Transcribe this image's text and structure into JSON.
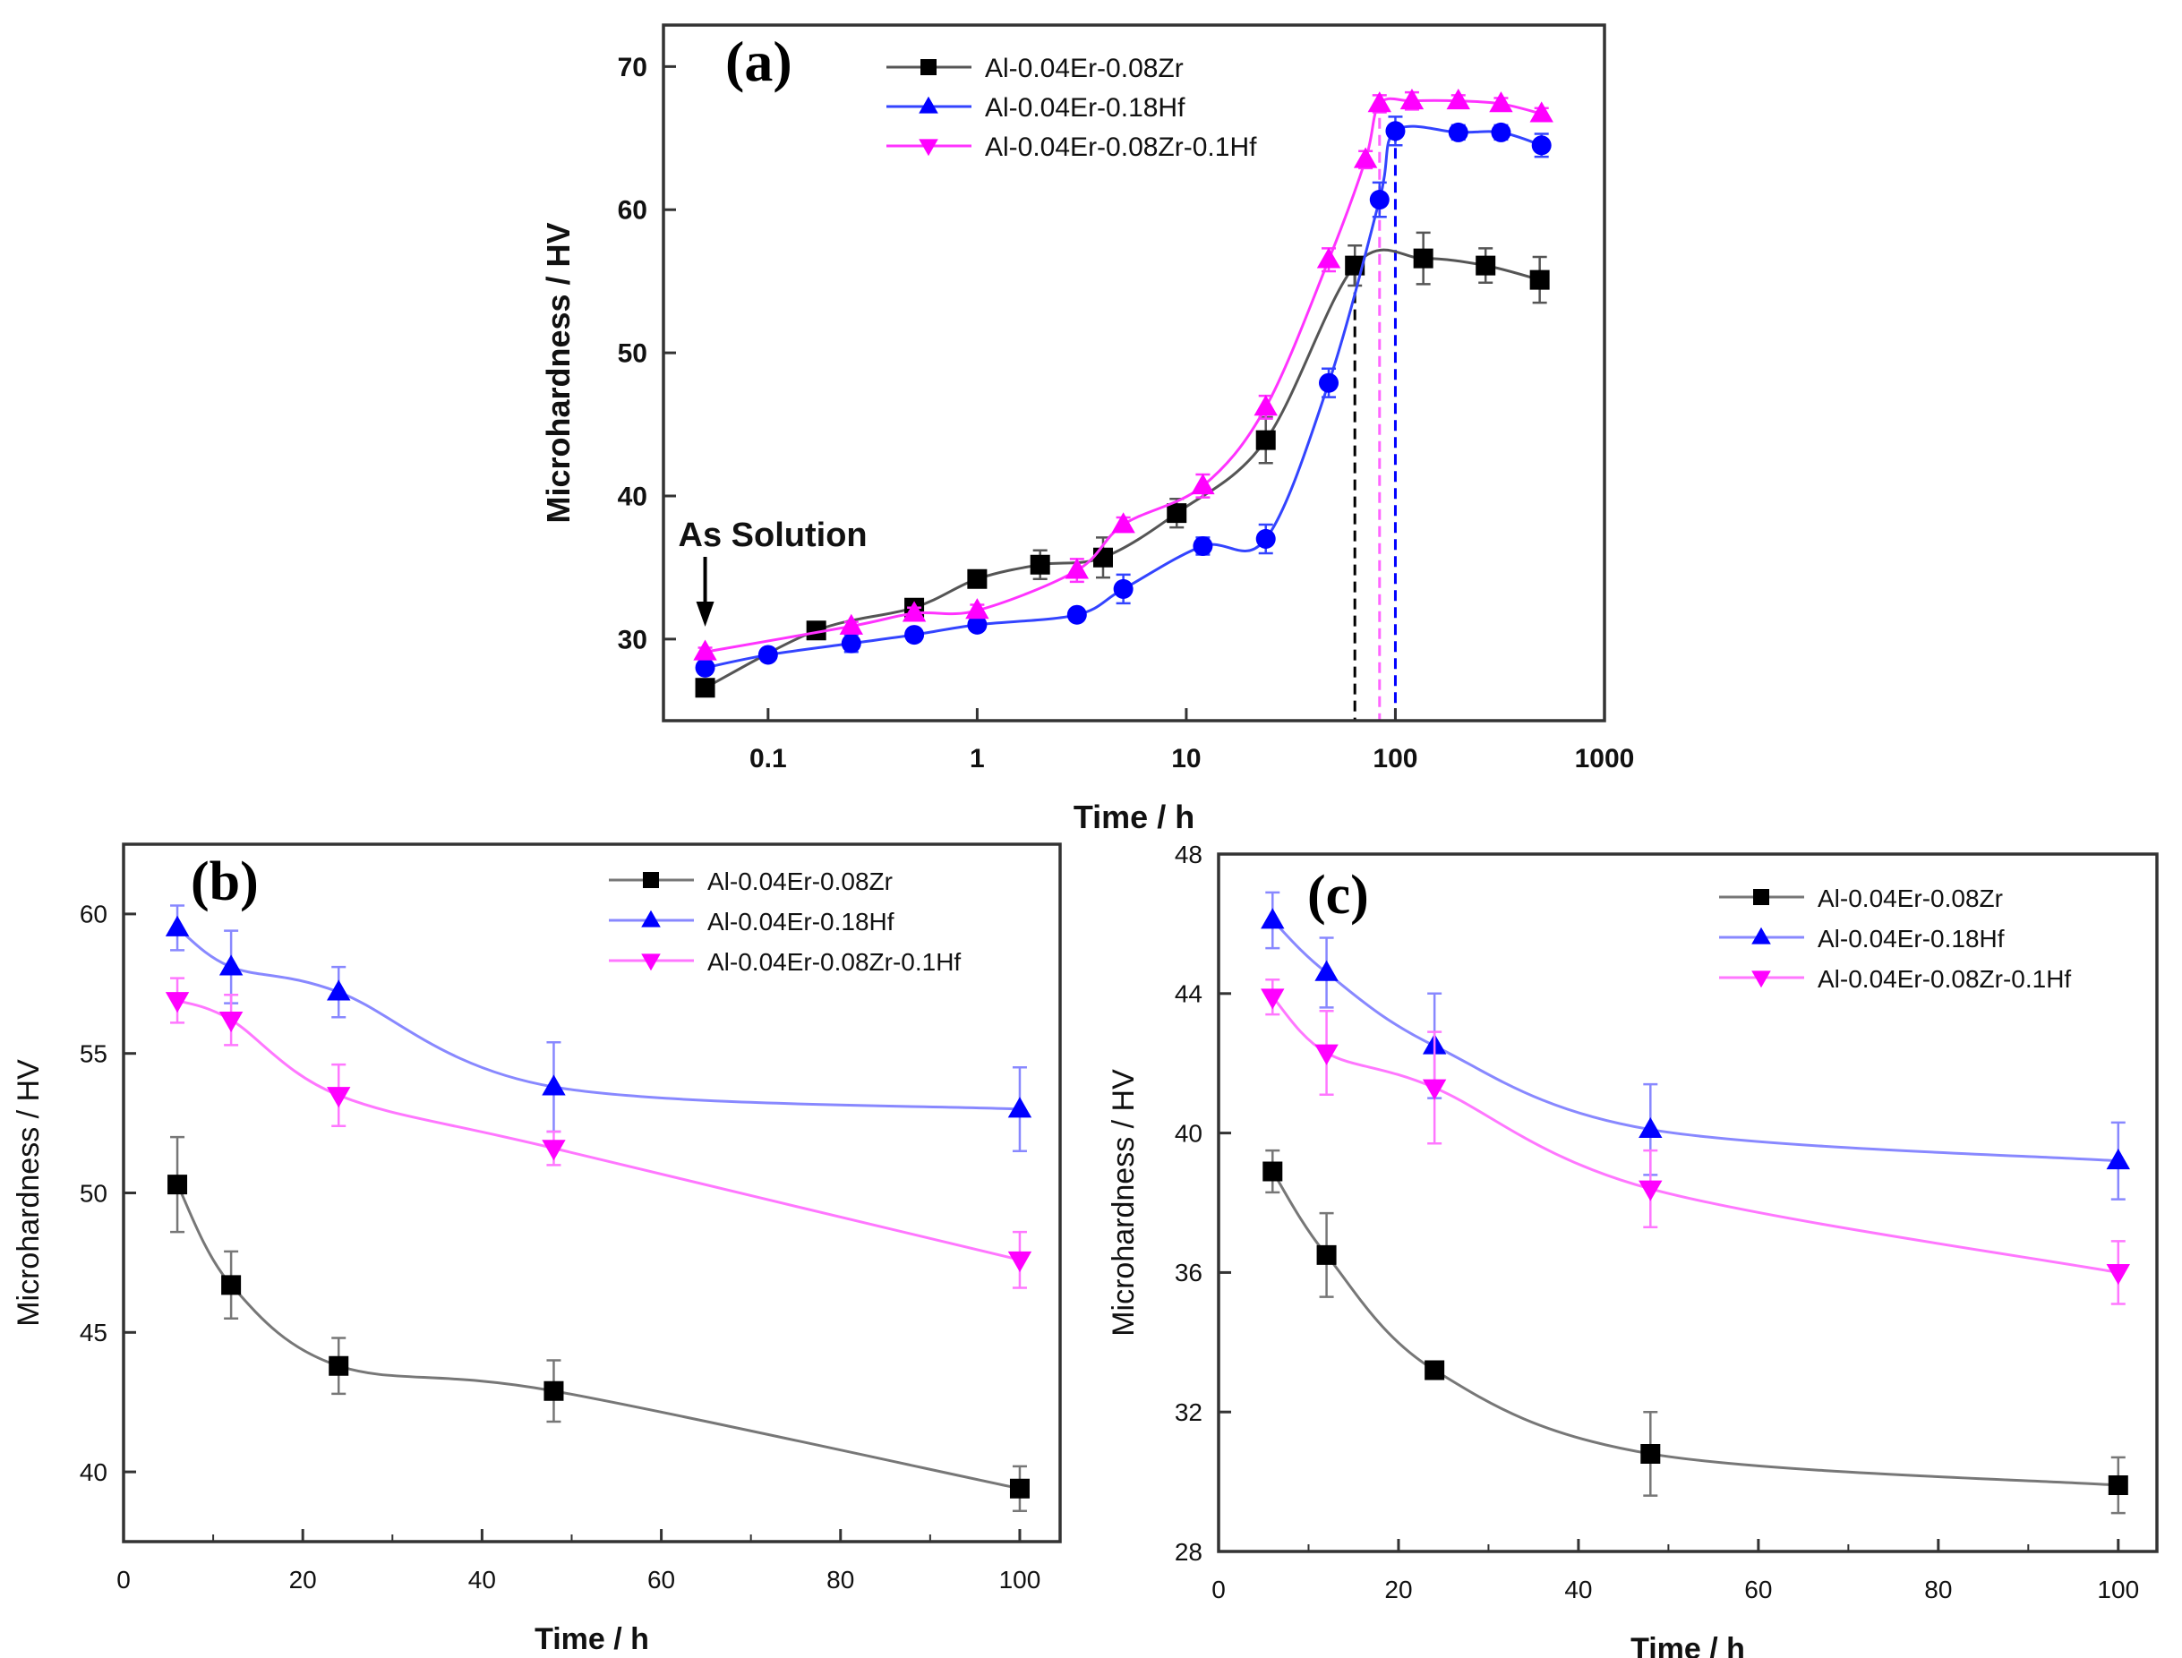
{
  "chart_data": [
    {
      "type": "line",
      "panel_label": "(a)",
      "xlabel": "Time / h",
      "ylabel": "Microhardness / HV",
      "xscale": "log",
      "xlim": [
        0.0316,
        1000
      ],
      "ylim": [
        24.3,
        72.9
      ],
      "xticks": [
        0.1,
        1,
        10,
        100,
        1000
      ],
      "xtick_labels": [
        "0.1",
        "1",
        "10",
        "100",
        "1000"
      ],
      "yticks": [
        30,
        40,
        50,
        60,
        70
      ],
      "ytick_labels": [
        "30",
        "40",
        "50",
        "60",
        "70"
      ],
      "legend_position": "top-center",
      "annotation": "As Solution",
      "annotation_x": 0.05,
      "peak_lines": [
        {
          "x": 64,
          "color": "#000000"
        },
        {
          "x": 84,
          "color": "#ff66ff"
        },
        {
          "x": 100,
          "color": "#0000ff"
        }
      ],
      "series": [
        {
          "name": "Al-0.04Er-0.08Zr",
          "color": "#000000",
          "line_color": "#555555",
          "marker": "square",
          "x": [
            0.05,
            0.17,
            0.5,
            1,
            2,
            4,
            9,
            24,
            64,
            136,
            270,
            490
          ],
          "y": [
            26.6,
            30.6,
            32.2,
            34.2,
            35.2,
            35.7,
            38.8,
            43.9,
            56.1,
            56.6,
            56.1,
            55.1
          ],
          "err": [
            0.3,
            0.4,
            0.4,
            0.4,
            1.0,
            1.4,
            1.0,
            1.6,
            1.4,
            1.8,
            1.2,
            1.6
          ]
        },
        {
          "name": "Al-0.04Er-0.18Hf",
          "color": "#0000ff",
          "line_color": "#3344ff",
          "marker": "triangle-up",
          "plot_marker": "circle",
          "x": [
            0.05,
            0.1,
            0.25,
            0.5,
            1,
            3,
            5,
            12,
            24,
            48,
            84,
            100,
            200,
            320,
            500
          ],
          "y": [
            28.0,
            28.9,
            29.7,
            30.3,
            31.0,
            31.7,
            33.5,
            36.5,
            37.0,
            47.9,
            60.7,
            65.5,
            65.4,
            65.4,
            64.5
          ],
          "err": [
            0.4,
            0.4,
            0.6,
            0.4,
            0.4,
            0.4,
            1.0,
            0.6,
            1.0,
            1.0,
            1.2,
            1.0,
            0.5,
            0.5,
            0.8
          ]
        },
        {
          "name": "Al-0.04Er-0.08Zr-0.1Hf",
          "color": "#ff00ff",
          "line_color": "#ff33ff",
          "marker": "triangle-down",
          "plot_marker": "triangle-up",
          "x": [
            0.05,
            0.25,
            0.5,
            1,
            3,
            5,
            12,
            24,
            48,
            72,
            84,
            120,
            200,
            320,
            500
          ],
          "y": [
            29.1,
            30.9,
            31.8,
            32.0,
            34.8,
            38.0,
            40.7,
            46.2,
            56.5,
            63.5,
            67.4,
            67.6,
            67.6,
            67.4,
            66.7
          ],
          "err": [
            0.3,
            0.3,
            0.4,
            0.4,
            0.8,
            0.5,
            0.8,
            0.8,
            0.8,
            0.6,
            0.6,
            0.6,
            0.4,
            0.4,
            0.4
          ]
        }
      ]
    },
    {
      "type": "line",
      "panel_label": "(b)",
      "xlabel": "Time / h",
      "ylabel": "Microhardness / HV",
      "xscale": "linear",
      "xlim": [
        0,
        104.5
      ],
      "ylim": [
        37.5,
        62.5
      ],
      "xticks": [
        0,
        20,
        40,
        60,
        80,
        100
      ],
      "xtick_labels": [
        "0",
        "20",
        "40",
        "60",
        "80",
        "100"
      ],
      "yticks": [
        40,
        45,
        50,
        55,
        60
      ],
      "ytick_labels": [
        "40",
        "45",
        "50",
        "55",
        "60"
      ],
      "legend_position": "top-right",
      "series": [
        {
          "name": "Al-0.04Er-0.08Zr",
          "color": "#000000",
          "line_color": "#777777",
          "marker": "square",
          "x": [
            6,
            12,
            24,
            48,
            100
          ],
          "y": [
            50.3,
            46.7,
            43.8,
            42.9,
            39.4
          ],
          "err": [
            1.7,
            1.2,
            1.0,
            1.1,
            0.8
          ]
        },
        {
          "name": "Al-0.04Er-0.18Hf",
          "color": "#0000ff",
          "line_color": "#8888ff",
          "marker": "triangle-up",
          "x": [
            6,
            12,
            24,
            48,
            100
          ],
          "y": [
            59.5,
            58.1,
            57.2,
            53.8,
            53.0
          ],
          "err": [
            0.8,
            1.3,
            0.9,
            1.6,
            1.5
          ]
        },
        {
          "name": "Al-0.04Er-0.08Zr-0.1Hf",
          "color": "#ff00ff",
          "line_color": "#ff77ff",
          "marker": "triangle-down",
          "x": [
            6,
            12,
            24,
            48,
            100
          ],
          "y": [
            56.9,
            56.2,
            53.5,
            51.6,
            47.6
          ],
          "err": [
            0.8,
            0.9,
            1.1,
            0.6,
            1.0
          ]
        }
      ]
    },
    {
      "type": "line",
      "panel_label": "(c)",
      "xlabel": "Time / h",
      "ylabel": "Microhardness / HV",
      "xscale": "linear",
      "xlim": [
        0,
        104.3
      ],
      "ylim": [
        28,
        48
      ],
      "xticks": [
        0,
        20,
        40,
        60,
        80,
        100
      ],
      "xtick_labels": [
        "0",
        "20",
        "40",
        "60",
        "80",
        "100"
      ],
      "yticks": [
        28,
        32,
        36,
        40,
        44,
        48
      ],
      "ytick_labels": [
        "28",
        "32",
        "36",
        "40",
        "44",
        "48"
      ],
      "legend_position": "top-right",
      "series": [
        {
          "name": "Al-0.04Er-0.08Zr",
          "color": "#000000",
          "line_color": "#777777",
          "marker": "square",
          "x": [
            6,
            12,
            24,
            48,
            100
          ],
          "y": [
            38.9,
            36.5,
            33.2,
            30.8,
            29.9
          ],
          "err": [
            0.6,
            1.2,
            0.1,
            1.2,
            0.8
          ]
        },
        {
          "name": "Al-0.04Er-0.18Hf",
          "color": "#0000ff",
          "line_color": "#8888ff",
          "marker": "triangle-up",
          "x": [
            6,
            12,
            24,
            48,
            100
          ],
          "y": [
            46.1,
            44.6,
            42.5,
            40.1,
            39.2
          ],
          "err": [
            0.8,
            1.0,
            1.5,
            1.3,
            1.1
          ]
        },
        {
          "name": "Al-0.04Er-0.08Zr-0.1Hf",
          "color": "#ff00ff",
          "line_color": "#ff77ff",
          "marker": "triangle-down",
          "x": [
            6,
            12,
            24,
            48,
            100
          ],
          "y": [
            43.9,
            42.3,
            41.3,
            38.4,
            36.0
          ],
          "err": [
            0.5,
            1.2,
            1.6,
            1.1,
            0.9
          ]
        }
      ]
    }
  ]
}
